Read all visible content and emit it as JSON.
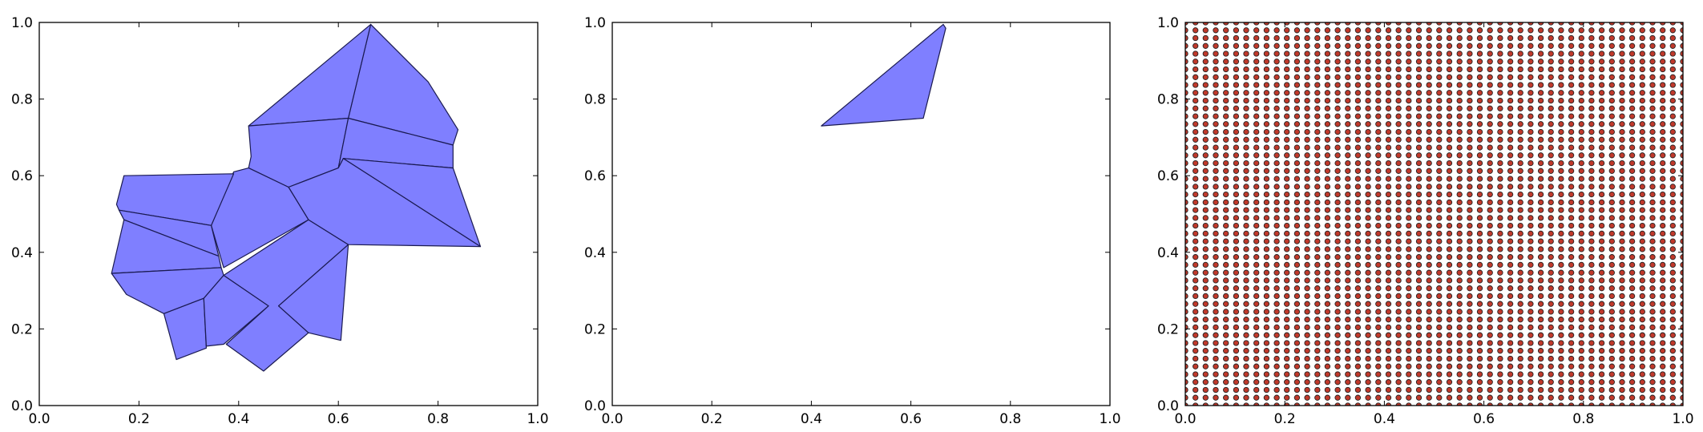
{
  "chart_data": [
    {
      "type": "area",
      "title": "",
      "xlabel": "",
      "ylabel": "",
      "xlim": [
        0,
        1
      ],
      "ylim": [
        0,
        1
      ],
      "xticks": [
        "0.0",
        "0.2",
        "0.4",
        "0.6",
        "0.8",
        "1.0"
      ],
      "yticks": [
        "0.0",
        "0.2",
        "0.4",
        "0.6",
        "0.8",
        "1.0"
      ],
      "fill_color": "#7f7fff",
      "edge_color": "#1a1a50",
      "polygons": [
        [
          [
            0.665,
            0.995
          ],
          [
            0.78,
            0.845
          ],
          [
            0.84,
            0.72
          ],
          [
            0.83,
            0.68
          ],
          [
            0.62,
            0.75
          ]
        ],
        [
          [
            0.665,
            0.995
          ],
          [
            0.62,
            0.75
          ],
          [
            0.42,
            0.73
          ]
        ],
        [
          [
            0.42,
            0.73
          ],
          [
            0.62,
            0.75
          ],
          [
            0.6,
            0.62
          ],
          [
            0.5,
            0.57
          ],
          [
            0.42,
            0.62
          ],
          [
            0.425,
            0.65
          ]
        ],
        [
          [
            0.62,
            0.75
          ],
          [
            0.83,
            0.68
          ],
          [
            0.83,
            0.62
          ],
          [
            0.61,
            0.645
          ],
          [
            0.6,
            0.62
          ]
        ],
        [
          [
            0.61,
            0.645
          ],
          [
            0.83,
            0.62
          ],
          [
            0.885,
            0.415
          ]
        ],
        [
          [
            0.6,
            0.62
          ],
          [
            0.61,
            0.645
          ],
          [
            0.885,
            0.415
          ],
          [
            0.62,
            0.42
          ],
          [
            0.54,
            0.485
          ],
          [
            0.5,
            0.57
          ]
        ],
        [
          [
            0.42,
            0.62
          ],
          [
            0.5,
            0.57
          ],
          [
            0.54,
            0.485
          ],
          [
            0.37,
            0.36
          ],
          [
            0.345,
            0.47
          ],
          [
            0.39,
            0.61
          ]
        ],
        [
          [
            0.17,
            0.6
          ],
          [
            0.39,
            0.605
          ],
          [
            0.345,
            0.47
          ],
          [
            0.16,
            0.51
          ],
          [
            0.155,
            0.525
          ]
        ],
        [
          [
            0.16,
            0.51
          ],
          [
            0.345,
            0.47
          ],
          [
            0.36,
            0.39
          ],
          [
            0.17,
            0.485
          ]
        ],
        [
          [
            0.17,
            0.485
          ],
          [
            0.36,
            0.39
          ],
          [
            0.365,
            0.36
          ],
          [
            0.145,
            0.345
          ]
        ],
        [
          [
            0.145,
            0.345
          ],
          [
            0.365,
            0.36
          ],
          [
            0.37,
            0.34
          ],
          [
            0.33,
            0.28
          ],
          [
            0.25,
            0.24
          ],
          [
            0.175,
            0.29
          ]
        ],
        [
          [
            0.25,
            0.24
          ],
          [
            0.33,
            0.28
          ],
          [
            0.335,
            0.15
          ],
          [
            0.275,
            0.12
          ]
        ],
        [
          [
            0.33,
            0.28
          ],
          [
            0.37,
            0.34
          ],
          [
            0.46,
            0.26
          ],
          [
            0.37,
            0.16
          ],
          [
            0.335,
            0.155
          ]
        ],
        [
          [
            0.37,
            0.34
          ],
          [
            0.54,
            0.485
          ],
          [
            0.62,
            0.42
          ],
          [
            0.48,
            0.26
          ],
          [
            0.54,
            0.19
          ],
          [
            0.45,
            0.09
          ],
          [
            0.375,
            0.16
          ],
          [
            0.46,
            0.26
          ]
        ],
        [
          [
            0.62,
            0.42
          ],
          [
            0.605,
            0.17
          ],
          [
            0.54,
            0.19
          ],
          [
            0.48,
            0.26
          ]
        ]
      ]
    },
    {
      "type": "area",
      "title": "",
      "xlabel": "",
      "ylabel": "",
      "xlim": [
        0,
        1
      ],
      "ylim": [
        0,
        1
      ],
      "xticks": [
        "0.0",
        "0.2",
        "0.4",
        "0.6",
        "0.8",
        "1.0"
      ],
      "yticks": [
        "0.0",
        "0.2",
        "0.4",
        "0.6",
        "0.8",
        "1.0"
      ],
      "fill_color": "#7f7fff",
      "edge_color": "#1a1a50",
      "polygons": [
        [
          [
            0.665,
            0.995
          ],
          [
            0.67,
            0.985
          ],
          [
            0.625,
            0.75
          ],
          [
            0.42,
            0.73
          ]
        ]
      ]
    },
    {
      "type": "scatter",
      "title": "",
      "xlabel": "",
      "ylabel": "",
      "xlim": [
        0,
        1
      ],
      "ylim": [
        0,
        1
      ],
      "xticks": [
        "0.0",
        "0.2",
        "0.4",
        "0.6",
        "0.8",
        "1.0"
      ],
      "yticks": [
        "0.0",
        "0.2",
        "0.4",
        "0.6",
        "0.8",
        "1.0"
      ],
      "grid_points": {
        "x_start": 0.0,
        "x_end": 1.0,
        "x_count": 50,
        "y_start": 0.0,
        "y_end": 1.0,
        "y_count": 50
      },
      "marker_fill": "#c0392b",
      "marker_edge": "#222222"
    }
  ]
}
